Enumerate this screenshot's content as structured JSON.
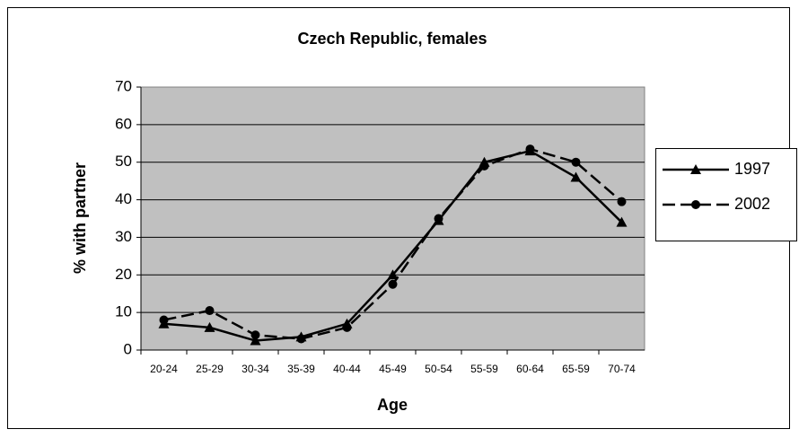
{
  "chart_data": {
    "type": "line",
    "title": "Czech Republic, females",
    "x_label": "Age",
    "y_label": "% with partner",
    "categories": [
      "20-24",
      "25-29",
      "30-34",
      "35-39",
      "40-44",
      "45-49",
      "50-54",
      "55-59",
      "60-64",
      "65-59",
      "70-74"
    ],
    "series": [
      {
        "name": "1997",
        "color": "#000000",
        "dash": "solid",
        "marker": "triangle",
        "values": [
          7,
          6,
          2.5,
          3.5,
          7,
          20,
          34.5,
          50,
          53,
          46,
          34
        ]
      },
      {
        "name": "2002",
        "color": "#000000",
        "dash": "dashed",
        "marker": "circle",
        "values": [
          8,
          10.5,
          4,
          3,
          6,
          17.5,
          35,
          49,
          53.5,
          50,
          39.5
        ]
      }
    ],
    "ylim": [
      0,
      70
    ],
    "yticks": [
      0,
      10,
      20,
      30,
      40,
      50,
      60,
      70
    ],
    "grid": true,
    "legend": "right"
  }
}
